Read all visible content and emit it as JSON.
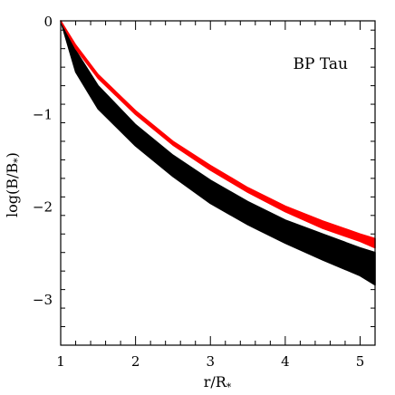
{
  "chart_data": {
    "type": "line",
    "title": "",
    "annotation": "BP Tau",
    "xlabel": "r/R",
    "xlabel_sub": "*",
    "ylabel_pre": "log(B/B",
    "ylabel_sub": "*",
    "ylabel_post": ")",
    "xlim": [
      1,
      5.2
    ],
    "ylim": [
      -3.5,
      0
    ],
    "x_ticks": [
      1,
      2,
      3,
      4,
      5
    ],
    "x_tick_labels": [
      "1",
      "2",
      "3",
      "4",
      "5"
    ],
    "y_ticks": [
      0,
      -1,
      -2,
      -3
    ],
    "y_tick_labels": [
      "0",
      "−1",
      "−2",
      "−3"
    ],
    "grid": false,
    "legend": "none",
    "colors": {
      "red_series": "#ff0000",
      "black_series": "#000000"
    },
    "series": [
      {
        "color": "#ff0000",
        "x": [
          1.0,
          1.2,
          1.5,
          2.0,
          2.5,
          3.0,
          3.5,
          4.0,
          4.5,
          5.0,
          5.2
        ],
        "y_upper": [
          0.0,
          -0.26,
          -0.58,
          -0.97,
          -1.3,
          -1.56,
          -1.8,
          -2.0,
          -2.16,
          -2.3,
          -2.35
        ],
        "y_lower": [
          0.0,
          -0.3,
          -0.62,
          -1.01,
          -1.34,
          -1.61,
          -1.85,
          -2.06,
          -2.24,
          -2.38,
          -2.45
        ]
      },
      {
        "color": "#000000",
        "x": [
          1.0,
          1.2,
          1.5,
          2.0,
          2.5,
          3.0,
          3.5,
          4.0,
          4.5,
          5.0,
          5.2
        ],
        "y_upper": [
          0.0,
          -0.32,
          -0.7,
          -1.12,
          -1.45,
          -1.72,
          -1.95,
          -2.15,
          -2.3,
          -2.45,
          -2.5
        ],
        "y_lower": [
          0.0,
          -0.55,
          -0.95,
          -1.35,
          -1.68,
          -1.97,
          -2.2,
          -2.4,
          -2.58,
          -2.75,
          -2.85
        ]
      }
    ]
  }
}
